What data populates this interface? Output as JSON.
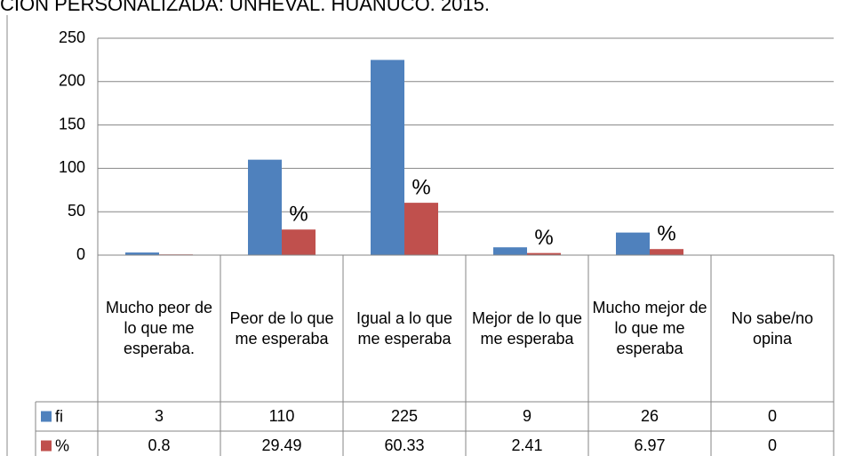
{
  "chart_data": {
    "type": "bar",
    "title": "CION PERSONALIZADA: UNHEVAL. HUANUCO. 2015.",
    "categories": [
      "Mucho peor de lo que me esperaba.",
      "Peor de lo que me esperaba",
      "Igual a lo que me esperaba",
      "Mejor de lo que me esperaba",
      "Mucho mejor de lo que me esperaba",
      "No sabe/no opina"
    ],
    "series": [
      {
        "name": "fi",
        "color": "#4f81bd",
        "values": [
          3,
          110,
          225,
          9,
          26,
          0
        ]
      },
      {
        "name": "%",
        "color": "#c0504d",
        "values": [
          0.8,
          29.49,
          60.33,
          2.41,
          6.97,
          0
        ],
        "value_labels": [
          null,
          "%",
          "%",
          "%",
          "%",
          null
        ]
      }
    ],
    "ylim": [
      0,
      250
    ],
    "yticks": [
      0,
      50,
      100,
      150,
      200,
      250
    ],
    "grid": true,
    "data_table": true
  }
}
